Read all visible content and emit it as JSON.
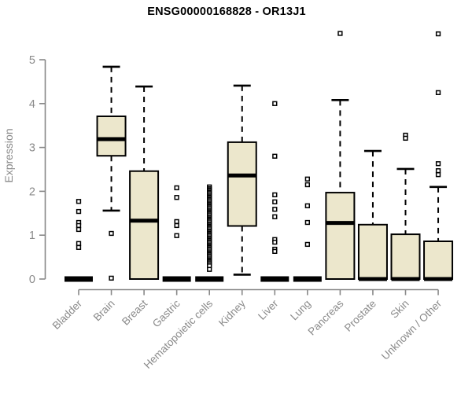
{
  "figure": {
    "title": "ENSG00000168828 - OR13J1",
    "ylabel": "Expression"
  },
  "chart_data": {
    "type": "boxplot",
    "title": "ENSG00000168828 - OR13J1",
    "xlabel": "",
    "ylabel": "Expression",
    "ylim": [
      0,
      5.65
    ],
    "yticks": [
      0,
      1,
      2,
      3,
      4,
      5
    ],
    "grid": false,
    "legend": "none",
    "categories": [
      "Bladder",
      "Brain",
      "Breast",
      "Gastric",
      "Hematopoietic cells",
      "Kidney",
      "Liver",
      "Lung",
      "Pancreas",
      "Prostate",
      "Skin",
      "Unknown / Other"
    ],
    "boxes": [
      {
        "category": "Bladder",
        "low": 0,
        "q1": 0,
        "median": 0,
        "q3": 0,
        "high": 0,
        "outliers": [
          1.77,
          1.54,
          1.29,
          1.22,
          1.13,
          0.81,
          0.72
        ]
      },
      {
        "category": "Brain",
        "low": 1.56,
        "q1": 2.81,
        "median": 3.19,
        "q3": 3.71,
        "high": 4.84,
        "outliers": [
          1.04,
          0.02
        ]
      },
      {
        "category": "Breast",
        "low": 0,
        "q1": 0,
        "median": 1.33,
        "q3": 2.46,
        "high": 4.39,
        "outliers": []
      },
      {
        "category": "Gastric",
        "low": 0,
        "q1": 0,
        "median": 0,
        "q3": 0,
        "high": 0,
        "outliers": [
          2.08,
          1.86,
          1.31,
          1.22,
          0.99
        ]
      },
      {
        "category": "Hematopoietic cells",
        "low": 0,
        "q1": 0,
        "median": 0,
        "q3": 0,
        "high": 0,
        "outliers": [
          2.1,
          2.06,
          2.03,
          2.0,
          1.97,
          1.94,
          1.9,
          1.87,
          1.84,
          1.81,
          1.78,
          1.74,
          1.71,
          1.68,
          1.65,
          1.62,
          1.58,
          1.55,
          1.52,
          1.49,
          1.46,
          1.42,
          1.39,
          1.36,
          1.33,
          1.3,
          1.26,
          1.23,
          1.2,
          1.17,
          1.14,
          1.1,
          1.07,
          1.04,
          1.01,
          0.98,
          0.94,
          0.91,
          0.88,
          0.85,
          0.82,
          0.78,
          0.75,
          0.72,
          0.69,
          0.66,
          0.62,
          0.59,
          0.56,
          0.53,
          0.5,
          0.46,
          0.43,
          0.4,
          0.37,
          0.34,
          0.3,
          0.22
        ]
      },
      {
        "category": "Kidney",
        "low": 0.1,
        "q1": 1.21,
        "median": 2.36,
        "q3": 3.12,
        "high": 4.41,
        "outliers": []
      },
      {
        "category": "Liver",
        "low": 0,
        "q1": 0,
        "median": 0,
        "q3": 0,
        "high": 0,
        "outliers": [
          4.0,
          2.8,
          1.92,
          1.76,
          1.59,
          1.42,
          0.9,
          0.84,
          0.68,
          0.63
        ]
      },
      {
        "category": "Lung",
        "low": 0,
        "q1": 0,
        "median": 0,
        "q3": 0,
        "high": 0,
        "outliers": [
          2.28,
          2.15,
          1.67,
          1.29,
          0.79
        ]
      },
      {
        "category": "Pancreas",
        "low": 0,
        "q1": 0,
        "median": 1.28,
        "q3": 1.97,
        "high": 4.08,
        "outliers": [
          5.6
        ]
      },
      {
        "category": "Prostate",
        "low": 0,
        "q1": 0,
        "median": 0,
        "q3": 1.24,
        "high": 2.92,
        "outliers": []
      },
      {
        "category": "Skin",
        "low": 0,
        "q1": 0,
        "median": 0,
        "q3": 1.02,
        "high": 2.51,
        "outliers": [
          3.28,
          3.21
        ]
      },
      {
        "category": "Unknown / Other",
        "low": 0,
        "q1": 0,
        "median": 0,
        "q3": 0.86,
        "high": 2.1,
        "outliers": [
          5.59,
          4.25,
          2.63,
          2.47,
          2.38
        ]
      }
    ],
    "colors": {
      "box_fill": "#ECE7CC",
      "box_border": "#000000",
      "median": "#000000",
      "whisker": "#000000",
      "outlier": "#000000",
      "axis": "#888888",
      "tick_label": "#8a8a8a",
      "title": "#000000",
      "background": "#ffffff"
    }
  }
}
